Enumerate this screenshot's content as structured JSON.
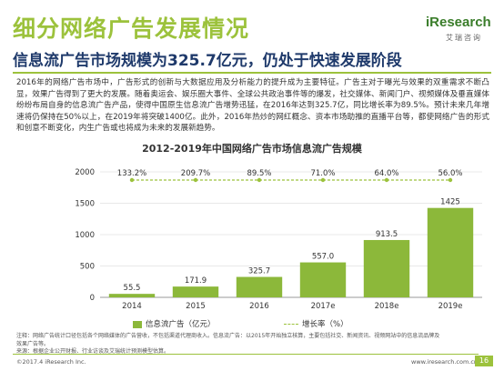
{
  "page": {
    "section_title": "细分网络广告发展情况",
    "logo_text": "iResearch",
    "logo_sub": "艾瑞咨询",
    "subtitle": "信息流广告市场规模为325.7亿元，仍处于快速发展阶段",
    "paragraph": "2016年的网络广告市场中，广告形式的创新与大数据应用及分析能力的提升成为主要特征。广告主对于曝光与效果的双重需求不断凸显，效果广告得到了更大的发展。随着奥运会、娱乐圈大事件、全球公共政治事件等的爆发，社交媒体、新闻门户、视频媒体及垂直媒体纷纷布局自身的信息流广告产品，使得中国原生信息流广告增势迅猛，在2016年达到325.7亿，同比增长率为89.5%。预计未来几年增速将仍保持在50%以上，在2019年将突破1400亿。此外，2016年热炒的网红概念、资本市场助推的直播平台等，都使网络广告的形式和创意不断变化，内生广告或也将成为未来的发展新趋势。",
    "notes": "注释：网络广告统计口径包括各个网络媒体的广告营收，不包括渠道代理商收入。信息流广告：以2015年开始独立核算，主要包括社交、新闻资讯、视频网站中的信息流品牌及效果广告等。",
    "source": "来源：根据企业公开财报、行业访谈及艾瑞统计预测模型估算。",
    "copyright": "©2017.4 iResearch Inc.",
    "url": "www.iresearch.com.cn",
    "page_number": "16"
  },
  "chart_data": {
    "type": "bar",
    "title": "2012-2019年中国网络广告市场信息流广告规模",
    "categories": [
      "2014",
      "2015",
      "2016",
      "2017e",
      "2018e",
      "2019e"
    ],
    "ylim": [
      0,
      2000
    ],
    "yticks": [
      0,
      500,
      1000,
      1500,
      2000
    ],
    "series": [
      {
        "name": "信息流广告（亿元）",
        "values": [
          55.5,
          171.9,
          325.7,
          557.0,
          913.5,
          1425
        ]
      },
      {
        "name": "增长率（%）",
        "values": [
          "133.2%",
          "209.7%",
          "89.5%",
          "71.0%",
          "64.0%",
          "56.0%"
        ]
      }
    ],
    "bar_labels": [
      "55.5",
      "171.9",
      "325.7",
      "557.0",
      "913.5",
      "1425"
    ],
    "grid": true,
    "legend_position": "bottom",
    "colors": {
      "bar": "#8cb83a",
      "line": "#9cc23c",
      "text": "#333333",
      "grid": "#e0e0e0"
    }
  }
}
